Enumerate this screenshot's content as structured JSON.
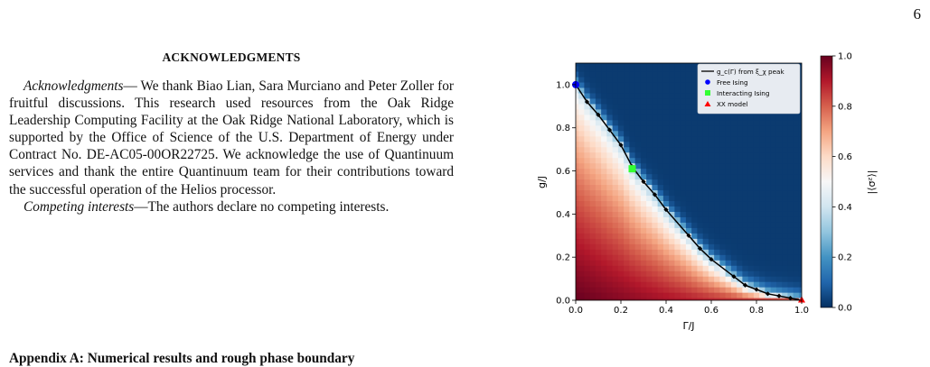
{
  "page": {
    "number": "6"
  },
  "acknowledgments": {
    "heading": "ACKNOWLEDGMENTS",
    "lead": "Acknowledgments",
    "body": "— We thank Biao Lian, Sara Murciano and Peter Zoller for fruitful discussions. This research used resources from the Oak Ridge Leadership Computing Facility at the Oak Ridge National Laboratory, which is supported by the Office of Science of the U.S. Department of Energy under Contract No. DE-AC05-00OR22725. We acknowledge the use of Quantinuum services and thank the entire Quantinuum team for their contributions toward the successful operation of the Helios processor."
  },
  "competing": {
    "lead": "Competing interests",
    "body": "—The authors declare no competing interests."
  },
  "appendix": {
    "heading": "Appendix A: Numerical results and rough phase boundary"
  },
  "chart_data": {
    "type": "heatmap",
    "xlabel": "Γ/J",
    "ylabel": "g/J",
    "colorbar_label": "|⟨σᶻ⟩|",
    "xlim": [
      0.0,
      1.0
    ],
    "ylim": [
      0.0,
      1.1
    ],
    "x_ticks": [
      "0.0",
      "0.2",
      "0.4",
      "0.6",
      "0.8",
      "1.0"
    ],
    "y_ticks": [
      "0.0",
      "0.2",
      "0.4",
      "0.6",
      "0.8",
      "1.0"
    ],
    "colorbar_range": [
      0.0,
      1.0
    ],
    "colorbar_ticks": [
      "0.0",
      "0.2",
      "0.4",
      "0.6",
      "0.8",
      "1.0"
    ],
    "colormap": "RdBu_r",
    "grid": false,
    "legend_position": "top-right",
    "legend": [
      {
        "label": "g_c(Γ) from ξ_χ peak",
        "marker": "line",
        "color": "#000000"
      },
      {
        "label": "Free Ising",
        "marker": "circle",
        "color": "#0000ff"
      },
      {
        "label": "Interacting Ising",
        "marker": "square",
        "color": "#33ff33"
      },
      {
        "label": "XX model",
        "marker": "triangle",
        "color": "#ff0000"
      }
    ],
    "boundary": {
      "name": "g_c(Γ) from ξ_χ peak",
      "x": [
        0.0,
        0.05,
        0.1,
        0.15,
        0.2,
        0.25,
        0.3,
        0.35,
        0.4,
        0.5,
        0.55,
        0.6,
        0.7,
        0.75,
        0.8,
        0.85,
        0.9,
        0.95,
        1.0
      ],
      "y": [
        1.0,
        0.92,
        0.86,
        0.79,
        0.72,
        0.62,
        0.55,
        0.49,
        0.42,
        0.3,
        0.24,
        0.19,
        0.11,
        0.07,
        0.05,
        0.03,
        0.02,
        0.01,
        0.0
      ]
    },
    "points": [
      {
        "name": "Free Ising",
        "x": 0.0,
        "y": 1.0
      },
      {
        "name": "Interacting Ising",
        "x": 0.25,
        "y": 0.61
      },
      {
        "name": "XX model",
        "x": 1.0,
        "y": 0.0
      }
    ]
  }
}
